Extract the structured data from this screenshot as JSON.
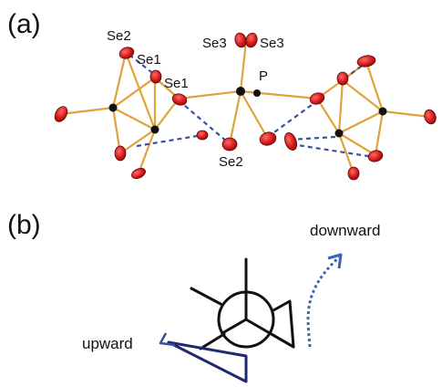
{
  "figure": {
    "panel_a_label": "(a)",
    "panel_b_label": "(b)",
    "atom_labels": {
      "se2_top": "Se2",
      "se1_top": "Se1",
      "se1_mid": "Se1",
      "se3_left": "Se3",
      "se3_right": "Se3",
      "p": "P",
      "se2_bottom": "Se2"
    },
    "direction_labels": {
      "downward": "downward",
      "upward": "upward"
    },
    "colors": {
      "bond": "#e0a23a",
      "oxygen_atom": "#d91a1a",
      "heavy_atom": "#111111",
      "dashed_contact": "#3a4fa0",
      "newman_line": "#111111",
      "upward_arrow": "#1f2a6b",
      "downward_arrow": "#3a63b8"
    }
  }
}
